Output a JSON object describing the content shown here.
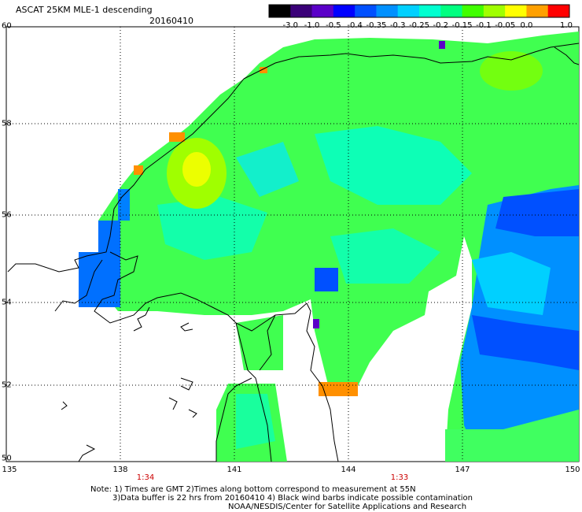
{
  "header": {
    "title": "ASCAT 25KM MLE-1 descending",
    "date": "20160410"
  },
  "colorbar": {
    "labels": [
      "-3.0",
      "-1.0",
      "-0.5",
      "-0.4",
      "-0.35",
      "-0.3",
      "-0.25",
      "-0.2",
      "-0.15",
      "-0.1",
      "-0.05",
      "0.0",
      "1.0"
    ],
    "colors": [
      "#000000",
      "#3a0078",
      "#5a00c8",
      "#0000ff",
      "#0050ff",
      "#0090ff",
      "#00d0ff",
      "#00ffd0",
      "#00ff80",
      "#40ff00",
      "#a0ff00",
      "#ffff00",
      "#ffa000",
      "#ff0000"
    ]
  },
  "axes": {
    "lat_labels": [
      "60",
      "58",
      "56",
      "54",
      "52",
      "50"
    ],
    "lon_labels": [
      "135",
      "138",
      "141",
      "144",
      "147",
      "150"
    ],
    "time_labels": [
      "1:34",
      "1:33"
    ]
  },
  "notes": {
    "line1": "Note: 1) Times are GMT 2)Times along bottom correspond to measurement at 55N",
    "line2": "3)Data buffer is 22 hrs from 20160410 4) Black wind barbs indicate possible contamination",
    "line3": "NOAA/NESDIS/Center for Satellite Applications and Research"
  }
}
